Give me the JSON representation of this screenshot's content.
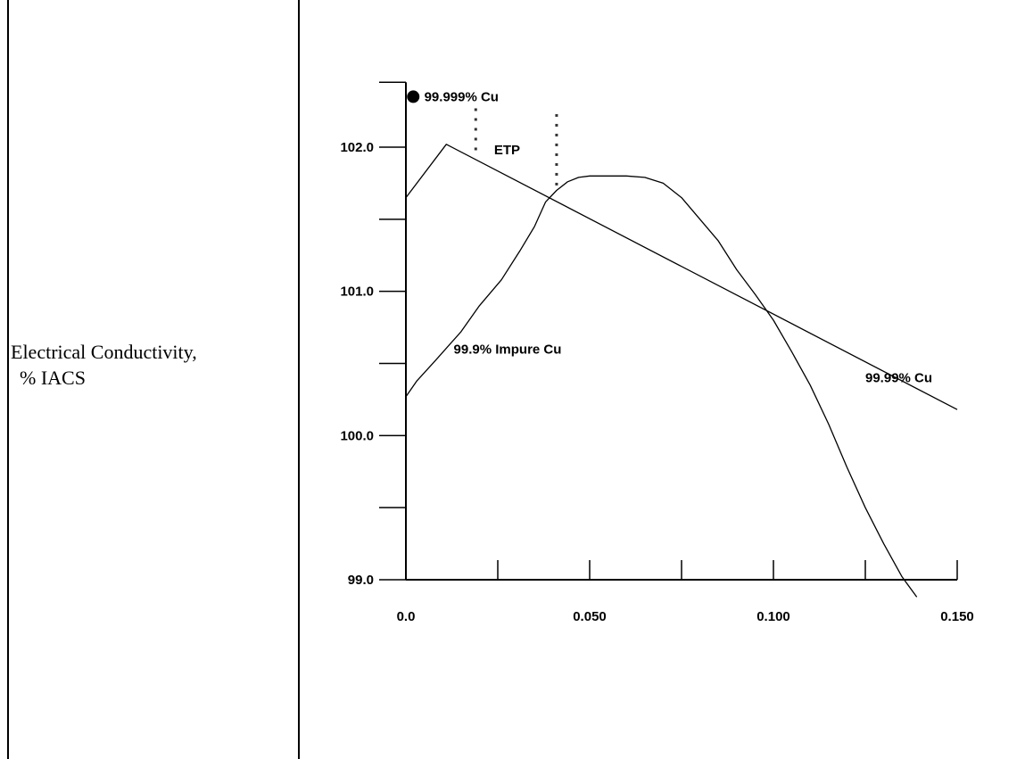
{
  "chart_data": {
    "type": "line",
    "title": "",
    "xlabel": "",
    "ylabel_line1": "Electrical Conductivity,",
    "ylabel_line2": "% IACS",
    "xlim": [
      0.0,
      0.15
    ],
    "ylim": [
      99.0,
      102.45
    ],
    "x_ticks": [
      0.0,
      0.025,
      0.05,
      0.075,
      0.1,
      0.125,
      0.15
    ],
    "x_tick_labels": [
      {
        "value": 0.0,
        "label": "0.0"
      },
      {
        "value": 0.05,
        "label": "0.050"
      },
      {
        "value": 0.1,
        "label": "0.100"
      },
      {
        "value": 0.15,
        "label": "0.150"
      }
    ],
    "y_ticks": [
      99.0,
      99.5,
      100.0,
      100.5,
      101.0,
      101.5,
      102.0
    ],
    "y_tick_labels": [
      {
        "value": 99.0,
        "label": "99.0"
      },
      {
        "value": 100.0,
        "label": "100.0"
      },
      {
        "value": 101.0,
        "label": "101.0"
      },
      {
        "value": 102.0,
        "label": "102.0"
      }
    ],
    "grid": false,
    "series": [
      {
        "name": "99.99% Cu",
        "x": [
          0.0,
          0.011,
          0.15
        ],
        "y": [
          101.65,
          102.02,
          100.18
        ]
      },
      {
        "name": "99.9% Impure Cu",
        "x": [
          0.0,
          0.003,
          0.008,
          0.015,
          0.02,
          0.026,
          0.031,
          0.035,
          0.038,
          0.041,
          0.044,
          0.047,
          0.05,
          0.055,
          0.06,
          0.065,
          0.07,
          0.075,
          0.08,
          0.085,
          0.09,
          0.095,
          0.1,
          0.105,
          0.11,
          0.115,
          0.12,
          0.125,
          0.13,
          0.135,
          0.139
        ],
        "y": [
          100.27,
          100.38,
          100.52,
          100.72,
          100.9,
          101.08,
          101.28,
          101.45,
          101.62,
          101.7,
          101.76,
          101.79,
          101.8,
          101.8,
          101.8,
          101.79,
          101.75,
          101.65,
          101.5,
          101.35,
          101.15,
          100.98,
          100.8,
          100.58,
          100.35,
          100.08,
          99.78,
          99.5,
          99.25,
          99.02,
          98.88
        ]
      }
    ],
    "points": [
      {
        "name": "99.999% Cu",
        "x": 0.002,
        "y": 102.35
      }
    ],
    "annotations": [
      {
        "text": "99.999% Cu",
        "x": 0.005,
        "y": 102.35
      },
      {
        "text": "ETP",
        "x": 0.024,
        "y": 101.98
      },
      {
        "text": "99.9% Impure Cu",
        "x": 0.013,
        "y": 100.6
      },
      {
        "text": "99.99% Cu",
        "x": 0.125,
        "y": 100.4
      }
    ],
    "markers": [
      {
        "x": 0.019,
        "y_from": 102.26,
        "y_to": 101.95
      },
      {
        "x": 0.041,
        "y_from": 102.22,
        "y_to": 101.73
      }
    ]
  }
}
